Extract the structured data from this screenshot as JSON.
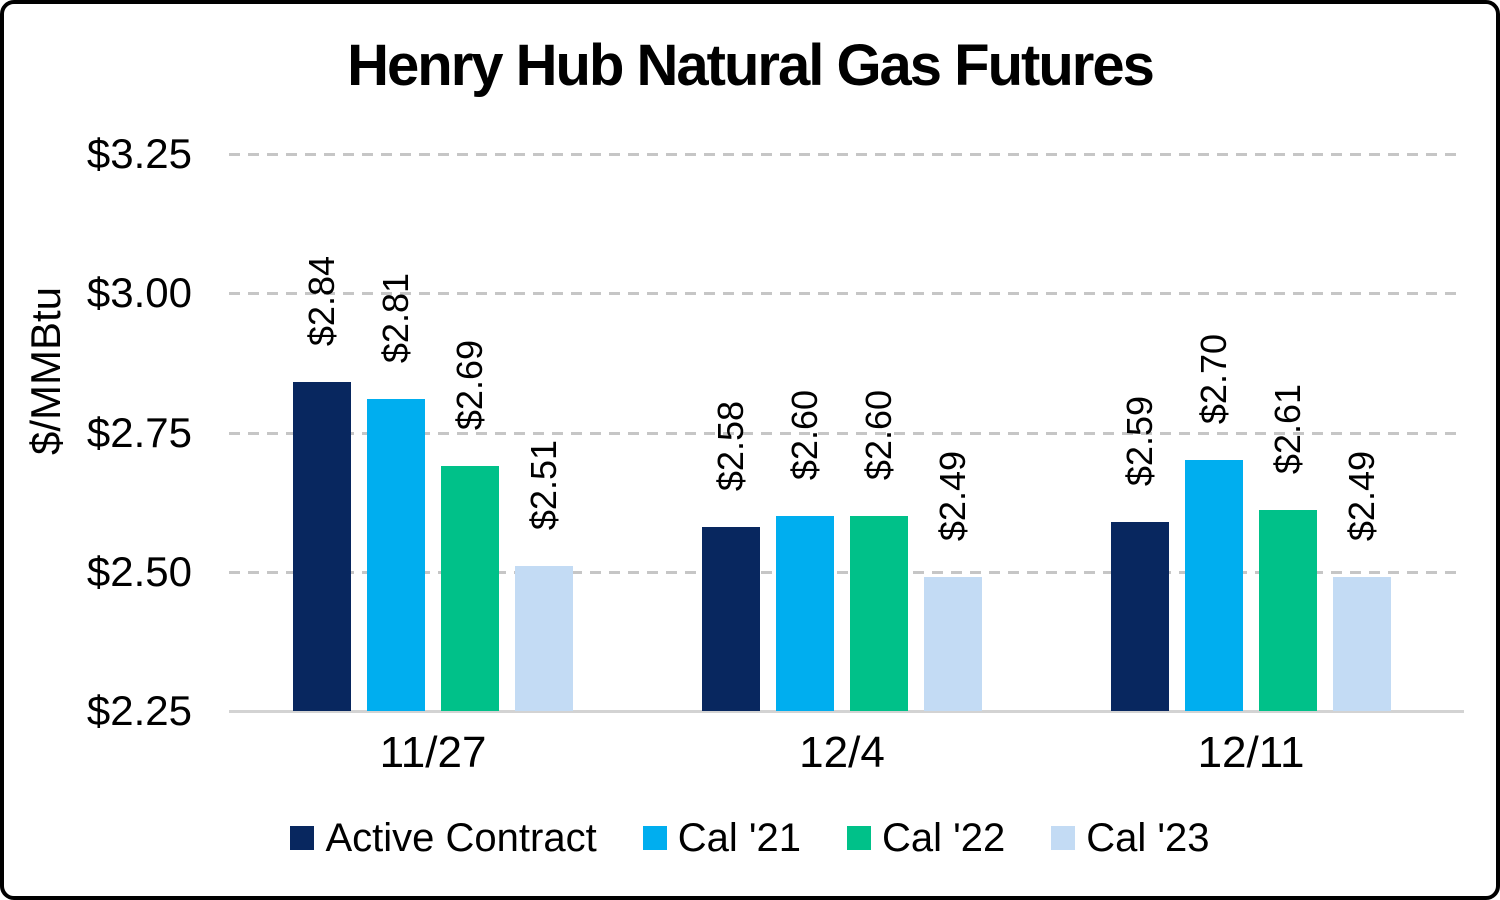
{
  "chart_data": {
    "type": "bar",
    "title": "Henry Hub Natural Gas Futures",
    "ylabel": "$/MMBtu",
    "xlabel": "",
    "categories": [
      "11/27",
      "12/4",
      "12/11"
    ],
    "series": [
      {
        "name": "Active Contract",
        "color": "#08275F",
        "values": [
          2.84,
          2.58,
          2.59
        ],
        "data_labels": [
          "$2.84",
          "$2.58",
          "$2.59"
        ]
      },
      {
        "name": "Cal '21",
        "color": "#00AEEF",
        "values": [
          2.81,
          2.6,
          2.7
        ],
        "data_labels": [
          "$2.81",
          "$2.60",
          "$2.70"
        ]
      },
      {
        "name": "Cal '22",
        "color": "#00C189",
        "values": [
          2.69,
          2.6,
          2.61
        ],
        "data_labels": [
          "$2.69",
          "$2.60",
          "$2.61"
        ]
      },
      {
        "name": "Cal '23",
        "color": "#C3DBF4",
        "values": [
          2.51,
          2.49,
          2.49
        ],
        "data_labels": [
          "$2.51",
          "$2.49",
          "$2.49"
        ]
      }
    ],
    "ylim": [
      2.25,
      3.25
    ],
    "yticks": [
      {
        "value": 3.25,
        "label": "$3.25"
      },
      {
        "value": 3.0,
        "label": "$3.00"
      },
      {
        "value": 2.75,
        "label": "$2.75"
      },
      {
        "value": 2.5,
        "label": "$2.50"
      },
      {
        "value": 2.25,
        "label": "$2.25"
      }
    ],
    "grid": "horizontal-dashed",
    "legend_position": "bottom"
  },
  "colors": {
    "background": "#FFFFFF",
    "border": "#000000",
    "text": "#000000",
    "gridline": "#C6C6C6",
    "axis_line": "#D3D3D3"
  }
}
